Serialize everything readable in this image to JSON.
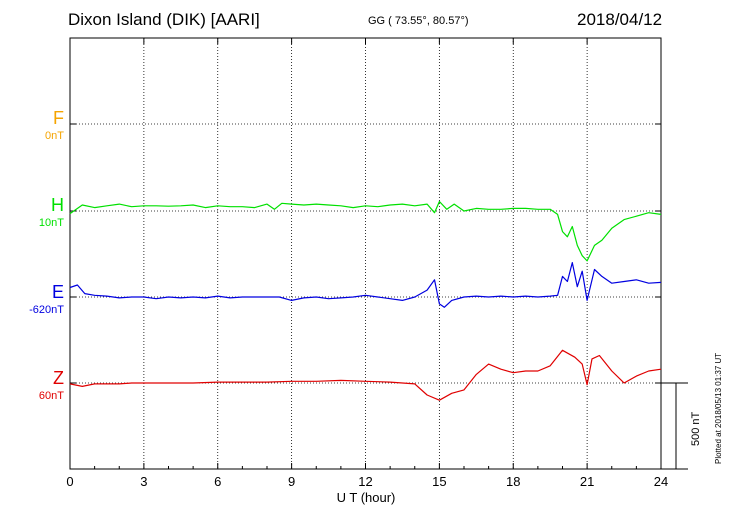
{
  "header": {
    "title": "Dixon Island (DIK)  [AARI]",
    "coordinates": "GG ( 73.55°,  80.57°)",
    "date": "2018/04/12"
  },
  "footer": {
    "plotted": "Plotted at 2018/05/13 01:37 UT"
  },
  "scale": {
    "label": "500 nT",
    "value_nT": 500
  },
  "components": [
    {
      "name": "F",
      "baseline": "0nT",
      "color": "#f5a400"
    },
    {
      "name": "H",
      "baseline": "10nT",
      "color": "#00e000"
    },
    {
      "name": "E",
      "baseline": "-620nT",
      "color": "#0000e0"
    },
    {
      "name": "Z",
      "baseline": "60nT",
      "color": "#e00000"
    }
  ],
  "chart_data": {
    "type": "line",
    "xlabel": "U T (hour)",
    "x_ticks": [
      "0",
      "3",
      "6",
      "9",
      "12",
      "15",
      "18",
      "21",
      "24"
    ],
    "xlim": [
      0,
      24
    ],
    "grid": true,
    "series": [
      {
        "name": "F",
        "color": "#f5a400",
        "baseline_nT": 0,
        "t": [],
        "v": []
      },
      {
        "name": "H",
        "color": "#00e000",
        "baseline_nT": 10,
        "t": [
          0,
          0.5,
          1,
          1.5,
          2,
          2.5,
          3,
          3.5,
          4,
          4.5,
          5,
          5.5,
          6,
          6.5,
          7,
          7.5,
          8,
          8.3,
          8.6,
          9,
          9.5,
          10,
          10.5,
          11,
          11.5,
          12,
          12.5,
          13,
          13.5,
          14,
          14.5,
          14.8,
          15,
          15.3,
          15.6,
          16,
          16.5,
          17,
          17.5,
          18,
          18.5,
          19,
          19.5,
          19.8,
          20,
          20.2,
          20.4,
          20.6,
          20.8,
          21,
          21.3,
          21.6,
          22,
          22.5,
          23,
          23.5,
          24
        ],
        "v": [
          -15,
          35,
          20,
          30,
          40,
          25,
          30,
          30,
          28,
          30,
          35,
          20,
          30,
          25,
          25,
          20,
          40,
          10,
          45,
          40,
          35,
          40,
          35,
          30,
          20,
          30,
          25,
          35,
          40,
          30,
          40,
          -10,
          55,
          10,
          40,
          0,
          15,
          10,
          10,
          15,
          15,
          10,
          10,
          -20,
          -120,
          -150,
          -90,
          -200,
          -260,
          -290,
          -200,
          -170,
          -100,
          -50,
          -30,
          -10,
          -20
        ]
      },
      {
        "name": "E",
        "color": "#0000e0",
        "baseline_nT": -620,
        "t": [
          0,
          0.3,
          0.6,
          1,
          1.5,
          2,
          2.5,
          3,
          3.5,
          4,
          4.5,
          5,
          5.5,
          6,
          6.5,
          7,
          7.5,
          8,
          8.5,
          9,
          9.5,
          10,
          10.5,
          11,
          11.5,
          12,
          12.5,
          13,
          13.5,
          14,
          14.5,
          14.8,
          15,
          15.2,
          15.5,
          16,
          16.5,
          17,
          17.5,
          18,
          18.5,
          19,
          19.5,
          19.8,
          20,
          20.2,
          20.4,
          20.6,
          20.8,
          21,
          21.3,
          21.6,
          22,
          22.5,
          23,
          23.5,
          24
        ],
        "v": [
          55,
          70,
          20,
          10,
          5,
          -5,
          0,
          0,
          -10,
          0,
          -5,
          0,
          -5,
          5,
          -5,
          0,
          0,
          0,
          0,
          -20,
          -5,
          0,
          -10,
          -5,
          0,
          10,
          0,
          -10,
          -20,
          0,
          40,
          100,
          -40,
          -60,
          -20,
          0,
          5,
          0,
          5,
          0,
          5,
          0,
          5,
          10,
          120,
          90,
          200,
          60,
          150,
          -20,
          160,
          120,
          80,
          90,
          100,
          80,
          85
        ]
      },
      {
        "name": "Z",
        "color": "#e00000",
        "baseline_nT": 60,
        "t": [
          0,
          0.5,
          1,
          1.5,
          2,
          2.5,
          3,
          4,
          5,
          6,
          7,
          8,
          9,
          10,
          11,
          12,
          13,
          14,
          14.5,
          15,
          15.5,
          16,
          16.5,
          17,
          17.5,
          18,
          18.5,
          19,
          19.5,
          20,
          20.5,
          20.8,
          21,
          21.2,
          21.5,
          22,
          22.5,
          23,
          23.5,
          24
        ],
        "v": [
          -5,
          -20,
          -5,
          -5,
          -5,
          0,
          0,
          0,
          0,
          5,
          5,
          5,
          10,
          10,
          15,
          10,
          5,
          -5,
          -70,
          -100,
          -60,
          -40,
          50,
          110,
          80,
          60,
          70,
          70,
          100,
          190,
          150,
          110,
          -10,
          140,
          160,
          70,
          0,
          40,
          70,
          80
        ]
      }
    ]
  }
}
